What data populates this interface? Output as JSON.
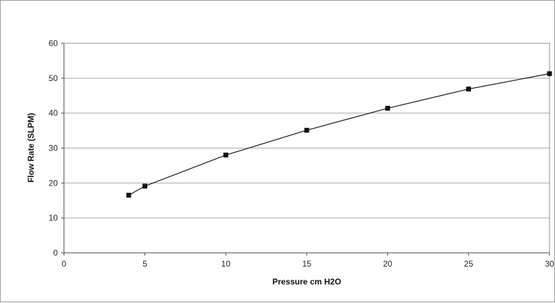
{
  "chart_data": {
    "type": "line",
    "title": "",
    "xlabel": "Pressure cm H2O",
    "ylabel": "Flow Rate (SLPM)",
    "xlim": [
      0,
      30
    ],
    "ylim": [
      0,
      60
    ],
    "xticks": [
      0,
      5,
      10,
      15,
      20,
      25,
      30
    ],
    "yticks": [
      0,
      10,
      20,
      30,
      40,
      50,
      60
    ],
    "grid": "horizontal",
    "legend": "none",
    "series": [
      {
        "marker": "square",
        "color": "#111111",
        "x": [
          4,
          5,
          10,
          15,
          20,
          25,
          30
        ],
        "y": [
          16.5,
          19.1,
          28.0,
          35.1,
          41.4,
          46.9,
          51.3
        ]
      }
    ]
  }
}
